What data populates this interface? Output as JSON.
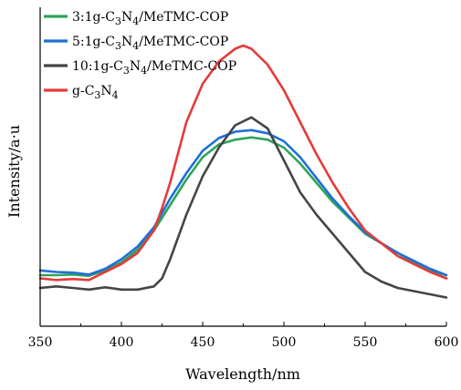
{
  "chart_data": {
    "type": "line",
    "title": "",
    "xlabel": "Wavelength/nm",
    "ylabel": "Intensity/a·u",
    "xlim": [
      350,
      600
    ],
    "ylim": [
      0,
      1
    ],
    "x_ticks": [
      350,
      400,
      450,
      500,
      550,
      600
    ],
    "x_tick_labels": [
      "350",
      "400",
      "450",
      "500",
      "550",
      "600"
    ],
    "y_ticks_shown": false,
    "grid": false,
    "legend_position": "top-left",
    "series": [
      {
        "name": "3:1g-C3N4/MeTMC-COP",
        "legend": {
          "pre": "3:1g-C",
          "sub1": "3",
          "mid": "N",
          "sub2": "4",
          "post": "/MeTMC-COP"
        },
        "color": "#2ea35a",
        "x": [
          350,
          360,
          370,
          380,
          390,
          400,
          410,
          420,
          430,
          440,
          450,
          460,
          470,
          480,
          490,
          500,
          510,
          520,
          530,
          540,
          550,
          560,
          570,
          580,
          590,
          600
        ],
        "y": [
          0.16,
          0.16,
          0.162,
          0.158,
          0.175,
          0.2,
          0.24,
          0.3,
          0.38,
          0.46,
          0.53,
          0.57,
          0.585,
          0.592,
          0.585,
          0.56,
          0.51,
          0.45,
          0.39,
          0.34,
          0.29,
          0.26,
          0.23,
          0.2,
          0.175,
          0.15
        ]
      },
      {
        "name": "5:1g-C3N4/MeTMC-COP",
        "legend": {
          "pre": "5:1g-C",
          "sub1": "3",
          "mid": "N",
          "sub2": "4",
          "post": "/MeTMC-COP"
        },
        "color": "#1e6fd9",
        "x": [
          350,
          360,
          370,
          380,
          390,
          400,
          410,
          420,
          430,
          440,
          450,
          460,
          470,
          480,
          490,
          500,
          510,
          520,
          530,
          540,
          550,
          560,
          570,
          580,
          590,
          600
        ],
        "y": [
          0.175,
          0.17,
          0.168,
          0.162,
          0.18,
          0.21,
          0.25,
          0.31,
          0.4,
          0.48,
          0.55,
          0.59,
          0.61,
          0.615,
          0.605,
          0.58,
          0.53,
          0.465,
          0.4,
          0.345,
          0.295,
          0.26,
          0.23,
          0.205,
          0.18,
          0.16
        ]
      },
      {
        "name": "10:1g-C3N4/MeTMC-COP",
        "legend": {
          "pre": "10:1g-C",
          "sub1": "3",
          "mid": "N",
          "sub2": "4",
          "post": "/MeTMC-COP"
        },
        "color": "#454545",
        "x": [
          350,
          360,
          370,
          380,
          390,
          400,
          410,
          420,
          425,
          430,
          440,
          450,
          460,
          470,
          480,
          490,
          500,
          510,
          520,
          530,
          540,
          550,
          560,
          570,
          580,
          590,
          600
        ],
        "y": [
          0.12,
          0.125,
          0.12,
          0.115,
          0.122,
          0.115,
          0.115,
          0.125,
          0.15,
          0.21,
          0.35,
          0.47,
          0.56,
          0.63,
          0.655,
          0.62,
          0.52,
          0.42,
          0.35,
          0.29,
          0.23,
          0.17,
          0.14,
          0.12,
          0.11,
          0.1,
          0.09
        ]
      },
      {
        "name": "g-C3N4",
        "legend": {
          "pre": "g-C",
          "sub1": "3",
          "mid": "N",
          "sub2": "4",
          "post": ""
        },
        "color": "#e53a3a",
        "x": [
          350,
          360,
          370,
          380,
          390,
          400,
          410,
          420,
          425,
          430,
          440,
          450,
          460,
          470,
          475,
          480,
          490,
          500,
          510,
          520,
          530,
          540,
          550,
          560,
          570,
          580,
          590,
          600
        ],
        "y": [
          0.15,
          0.145,
          0.148,
          0.145,
          0.17,
          0.195,
          0.23,
          0.3,
          0.37,
          0.45,
          0.64,
          0.76,
          0.83,
          0.87,
          0.88,
          0.87,
          0.82,
          0.74,
          0.64,
          0.54,
          0.45,
          0.37,
          0.3,
          0.26,
          0.22,
          0.195,
          0.17,
          0.15
        ]
      }
    ]
  }
}
